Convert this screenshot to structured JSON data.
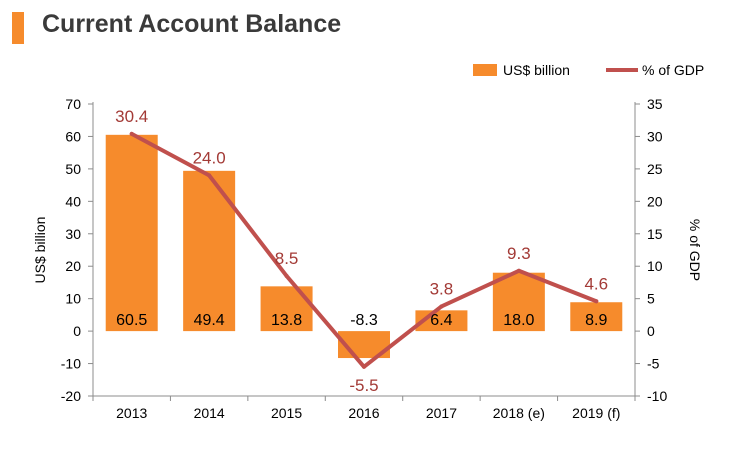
{
  "chart_data": {
    "type": "bar+line",
    "title": "Current Account Balance",
    "categories": [
      "2013",
      "2014",
      "2015",
      "2016",
      "2017",
      "2018 (e)",
      "2019 (f)"
    ],
    "series": [
      {
        "name": "US$ billion",
        "type": "bar",
        "axis": "left",
        "values": [
          60.5,
          49.4,
          13.8,
          -8.3,
          6.4,
          18.0,
          8.9
        ],
        "labels": [
          "60.5",
          "49.4",
          "13.8",
          "-8.3",
          "6.4",
          "18.0",
          "8.9"
        ]
      },
      {
        "name": "% of GDP",
        "type": "line",
        "axis": "right",
        "values": [
          30.4,
          24.0,
          8.5,
          -5.5,
          3.8,
          9.3,
          4.6
        ],
        "labels": [
          "30.4",
          "24.0",
          "8.5",
          "-5.5",
          "3.8",
          "9.3",
          "4.6"
        ]
      }
    ],
    "ylabel_left": "US$ billion",
    "ylabel_right": "% of GDP",
    "ylim_left": [
      -20,
      70
    ],
    "ylim_right": [
      -10,
      35
    ],
    "yticks_left": [
      "70",
      "60",
      "50",
      "40",
      "30",
      "20",
      "10",
      "0",
      "-10",
      "-20"
    ],
    "yticks_right": [
      "35",
      "30",
      "25",
      "20",
      "15",
      "10",
      "5",
      "0",
      "-5",
      "-10"
    ],
    "legend": {
      "position": "top-right",
      "bar_label": "US$ billion",
      "line_label": "% of GDP"
    },
    "colors": {
      "bar": "#f68b2c",
      "line": "#c0504d",
      "bar_label": "#000000",
      "line_label": "#a33a36",
      "title_accent": "#f68b2c"
    },
    "grid": false
  }
}
